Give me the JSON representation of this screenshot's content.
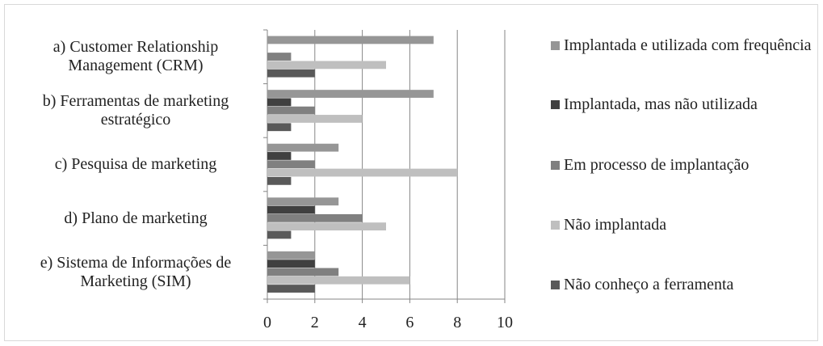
{
  "chart_data": {
    "type": "hbar",
    "categories": [
      "a) Customer Relationship Management (CRM)",
      "b) Ferramentas de marketing estratégico",
      "c) Pesquisa de marketing",
      "d) Plano de marketing",
      "e) Sistema de Informações de Marketing (SIM)"
    ],
    "series": [
      {
        "name": "Implantada e utilizada com frequência",
        "color": "#969696",
        "values": [
          7,
          7,
          3,
          3,
          2
        ]
      },
      {
        "name": "Implantada, mas não utilizada",
        "color": "#404040",
        "values": [
          0,
          1,
          1,
          2,
          2
        ]
      },
      {
        "name": "Em processo de implantação",
        "color": "#808080",
        "values": [
          1,
          2,
          2,
          4,
          3
        ]
      },
      {
        "name": "Não implantada",
        "color": "#bfbfbf",
        "values": [
          5,
          4,
          8,
          5,
          6
        ]
      },
      {
        "name": "Não conheço a ferramenta",
        "color": "#595959",
        "values": [
          2,
          1,
          1,
          1,
          2
        ]
      }
    ],
    "xlim": [
      0,
      10
    ],
    "xticks": [
      0,
      2,
      4,
      6,
      8,
      10
    ],
    "grid": true
  }
}
